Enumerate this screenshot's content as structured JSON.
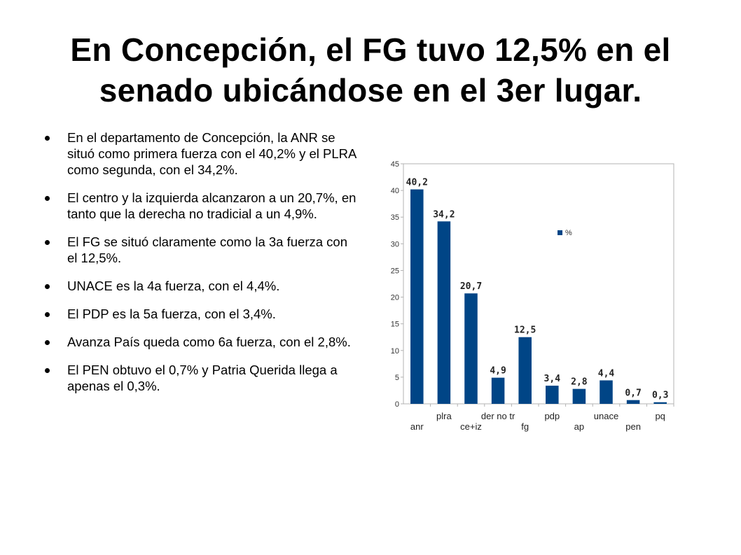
{
  "slide": {
    "title_line1": "En Concepción, el FG tuvo 12,5% en el",
    "title_line2": "senado ubicándose en el 3er lugar.",
    "bullets": [
      "En el departamento de Concepción, la ANR se situó como primera fuerza con el 40,2% y el PLRA como segunda, con el 34,2%.",
      "El centro y la izquierda alcanzaron a un 20,7%, en tanto que la derecha no tradicial a un 4,9%.",
      "El FG se situó claramente como la 3a fuerza con el 12,5%.",
      "UNACE es la 4a fuerza, con el 4,4%.",
      "El PDP es la 5a fuerza, con el 3,4%.",
      "Avanza País queda como 6a fuerza, con el 2,8%.",
      "El PEN obtuvo el 0,7% y Patria Querida llega a apenas el 0,3%."
    ]
  },
  "chart_data": {
    "type": "bar",
    "categories": [
      "anr",
      "plra",
      "ce+iz",
      "der no tr",
      "fg",
      "pdp",
      "ap",
      "unace",
      "pen",
      "pq"
    ],
    "series": [
      {
        "name": "%",
        "values": [
          40.2,
          34.2,
          20.7,
          4.9,
          12.5,
          3.4,
          2.8,
          4.4,
          0.7,
          0.3
        ]
      }
    ],
    "data_labels": [
      "40,2",
      "34,2",
      "20,7",
      "4,9",
      "12,5",
      "3,4",
      "2,8",
      "4,4",
      "0,7",
      "0,3"
    ],
    "ylim": [
      0,
      45
    ],
    "yticks": [
      "0",
      "5",
      "10",
      "15",
      "20",
      "25",
      "30",
      "35",
      "40",
      "45"
    ],
    "legend_position": "upper-center",
    "grid": false,
    "bar_color": "#004586"
  }
}
